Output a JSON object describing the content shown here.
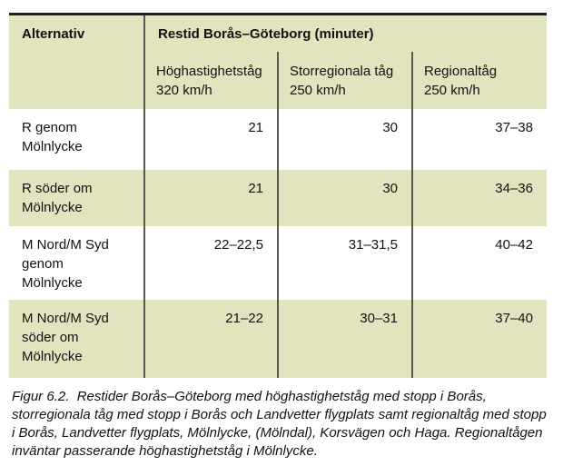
{
  "figure": {
    "table": {
      "corner_header": "Alternativ",
      "main_header": "Restid Borås–Göteborg (minuter)",
      "subheaders": [
        "Höghastighetståg\n320 km/h",
        "Storregionala tåg\n250 km/h",
        "Regionaltåg\n250 km/h"
      ],
      "rows": [
        {
          "label": "R genom\nMölnlycke",
          "values": [
            "21",
            "30",
            "37–38"
          ]
        },
        {
          "label": "R söder om\nMölnlycke",
          "values": [
            "21",
            "30",
            "34–36"
          ]
        },
        {
          "label": "M Nord/M Syd\ngenom\nMölnlycke",
          "values": [
            "22–22,5",
            "31–31,5",
            "40–42"
          ]
        },
        {
          "label": "M Nord/M Syd\nsöder om\nMölnlycke",
          "values": [
            "21–22",
            "30–31",
            "37–40"
          ]
        }
      ]
    },
    "caption": "Figur 6.2.  Restider Borås–Göteborg med höghastighetståg med stopp i Borås, storregionala tåg med stopp i Borås och Landvetter flygplats samt regionaltåg med stopp i Borås, Landvetter flygplats, Mölnlycke, (Mölndal), Korsvägen och Haga. Regionaltågen inväntar passerande höghastighetståg i Mölnlycke."
  },
  "colors": {
    "row_green": "#e1e4bd",
    "divider": "#58584f",
    "top_border": "#1e1e1e",
    "text": "#121212"
  }
}
